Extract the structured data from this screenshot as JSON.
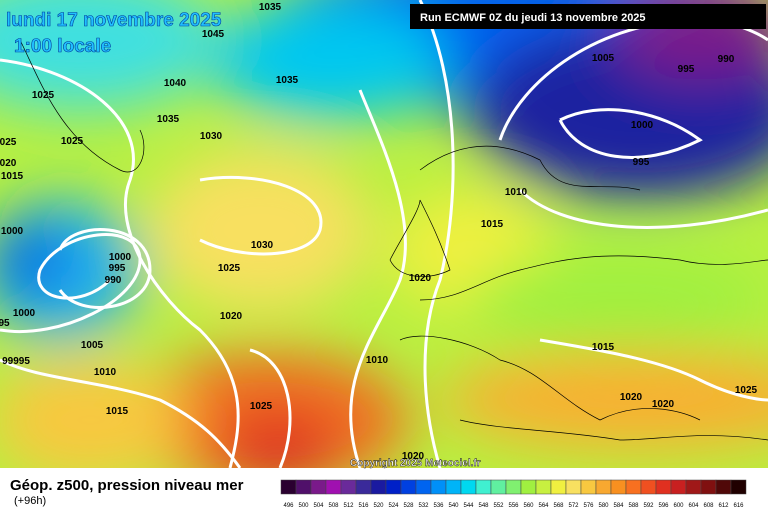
{
  "header": {
    "date": "lundi 17 novembre 2025",
    "time": "1:00 locale",
    "run": "Run ECMWF 0Z du jeudi 13 novembre 2025"
  },
  "map": {
    "isobar_labels": [
      "1035",
      "1045",
      "1040",
      "1035",
      "1025",
      "1025",
      "1035",
      "1030",
      "025",
      "020",
      "1015",
      "1000",
      "1000",
      "995",
      "990",
      "1000",
      "95",
      "99995",
      "1005",
      "1010",
      "1015",
      "1030",
      "1025",
      "1020",
      "1025",
      "1010",
      "1020",
      "1015",
      "1010",
      "1005",
      "995",
      "990",
      "1000",
      "995",
      "1015",
      "1020",
      "1020",
      "1025",
      "1020"
    ],
    "copyright": "Copyright 2025 Meteociel.fr"
  },
  "footer": {
    "title": "Géop. z500, pression niveau mer",
    "lead": "(+96h)"
  },
  "legend": {
    "labels": [
      496,
      500,
      504,
      508,
      512,
      516,
      520,
      524,
      528,
      532,
      536,
      540,
      544,
      548,
      552,
      556,
      560,
      564,
      568,
      572,
      576,
      580,
      584,
      588,
      592,
      596,
      600,
      604,
      608,
      612,
      616
    ],
    "colors": [
      "#2a0030",
      "#50106a",
      "#7a1a8a",
      "#a010b0",
      "#6a2a9a",
      "#3a2a9a",
      "#1a1aa0",
      "#0020c8",
      "#0040e0",
      "#0064f0",
      "#0090f8",
      "#00b4f8",
      "#00d8f0",
      "#40f0d0",
      "#60f0a0",
      "#80f070",
      "#a0f040",
      "#c8f040",
      "#f0f040",
      "#f8e060",
      "#f8c840",
      "#f8a830",
      "#f89020",
      "#f87020",
      "#f05020",
      "#e03020",
      "#c82020",
      "#a01818",
      "#801010",
      "#500808",
      "#200000"
    ]
  }
}
